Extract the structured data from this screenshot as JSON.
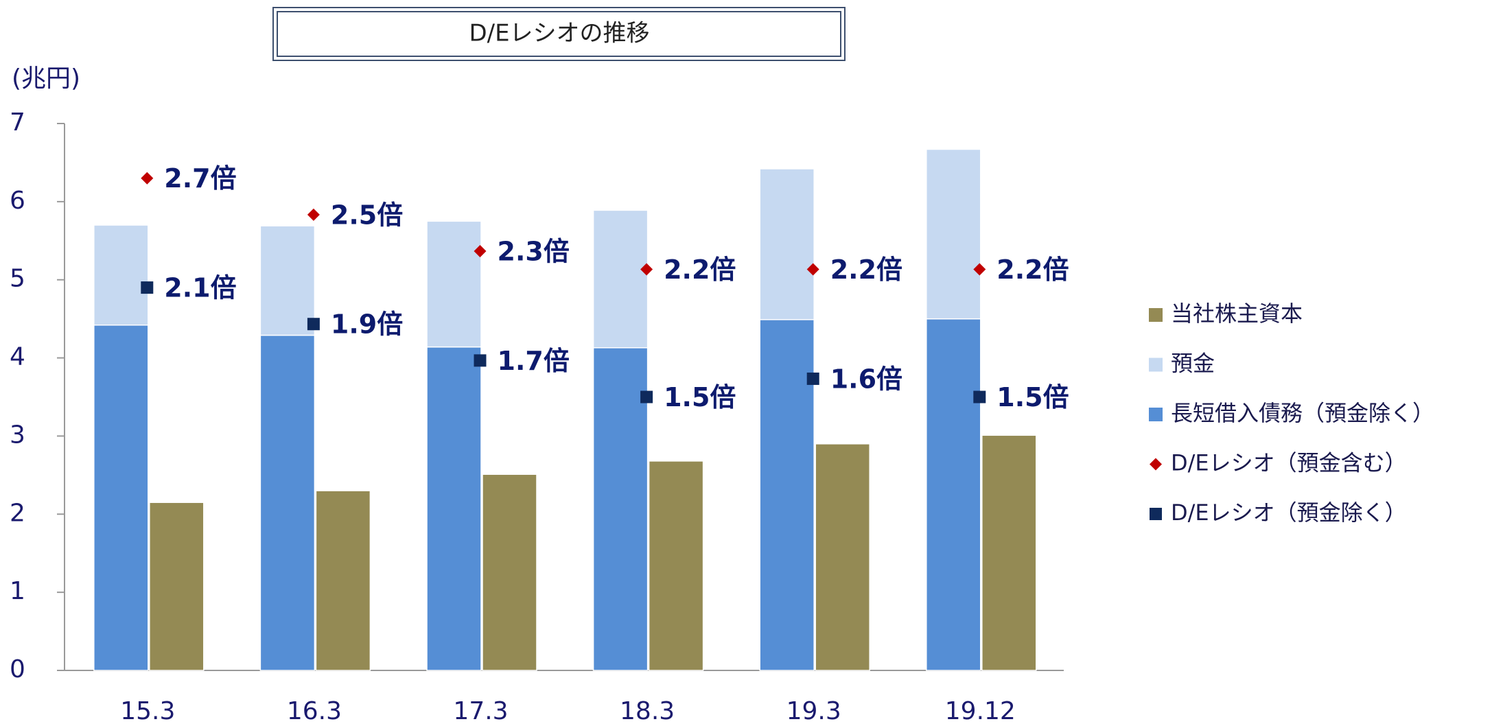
{
  "chart_data": {
    "type": "bar",
    "title": "D/Eレシオの推移",
    "y_label": "(兆円)",
    "categories": [
      "15.3",
      "16.3",
      "17.3",
      "18.3",
      "19.3",
      "19.12"
    ],
    "ylim": [
      0,
      7
    ],
    "yticks": [
      0,
      1,
      2,
      3,
      4,
      5,
      6,
      7
    ],
    "y2lim": [
      0,
      3
    ],
    "legend": "right",
    "series": [
      {
        "name": "当社株主資本",
        "color": "#948a54",
        "stack": "equity",
        "values": [
          2.15,
          2.3,
          2.51,
          2.68,
          2.9,
          3.01
        ]
      },
      {
        "name": "預金",
        "color": "#c6d9f1",
        "stack": "debt",
        "values": [
          1.28,
          1.4,
          1.61,
          1.76,
          1.93,
          2.17
        ]
      },
      {
        "name": "長短借入債務（預金除く）",
        "color": "#558ed5",
        "stack": "debt",
        "values": [
          4.42,
          4.29,
          4.14,
          4.13,
          4.49,
          4.5
        ]
      },
      {
        "name": "D/Eレシオ（預金含む）",
        "color": "#c00000",
        "type": "scatter",
        "marker": "diamond",
        "axis": "y2",
        "values": [
          2.7,
          2.5,
          2.3,
          2.2,
          2.2,
          2.2
        ],
        "value_labels": [
          "2.7倍",
          "2.5倍",
          "2.3倍",
          "2.2倍",
          "2.2倍",
          "2.2倍"
        ]
      },
      {
        "name": "D/Eレシオ（預金除く）",
        "color": "#0f2a5c",
        "type": "scatter",
        "marker": "square",
        "axis": "y2",
        "values": [
          2.1,
          1.9,
          1.7,
          1.5,
          1.6,
          1.5
        ],
        "value_labels": [
          "2.1倍",
          "1.9倍",
          "1.7倍",
          "1.5倍",
          "1.6倍",
          "1.5倍"
        ]
      }
    ]
  }
}
